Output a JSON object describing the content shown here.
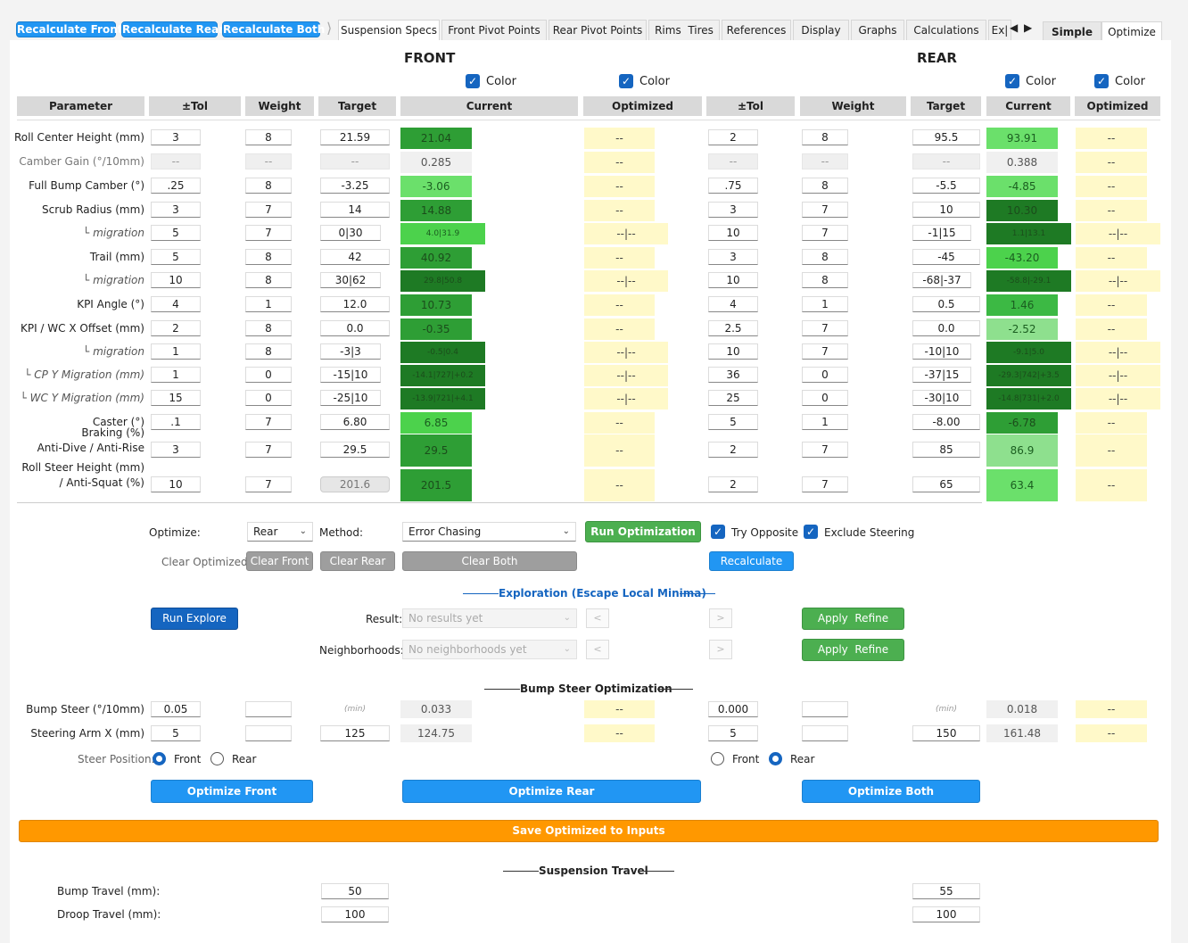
{
  "toolbar": {
    "recalc_front": "Recalculate Front",
    "recalc_rear": "Recalculate Rear",
    "recalc_both": "Recalculate Both"
  },
  "tabs": [
    "Suspension Specs",
    "Front Pivot Points",
    "Rear Pivot Points",
    "Rims  Tires",
    "References",
    "Display",
    "Graphs",
    "Calculations",
    "Ex|"
  ],
  "mode_tabs": [
    "Simple",
    "Optimize"
  ],
  "headers": {
    "front": "FRONT",
    "rear": "REAR",
    "color_label": "Color"
  },
  "columns": {
    "parameter": "Parameter",
    "tol": "±Tol",
    "weight": "Weight",
    "target": "Target",
    "current": "Current",
    "optimized": "Optimized"
  },
  "rows": [
    {
      "label": "Roll Center Height (mm)",
      "style": "",
      "f_tol": "3",
      "f_w": "8",
      "f_t": "21.59",
      "f_c": "21.04",
      "f_cc": "#2e9e35",
      "f_o": "--",
      "r_tol": "2",
      "r_w": "8",
      "r_t": "95.5",
      "r_c": "93.91",
      "r_cc": "#6be06b",
      "r_o": "--"
    },
    {
      "label": "Camber Gain (°/10mm)",
      "style": "gray",
      "dis": true,
      "f_tol": "--",
      "f_w": "--",
      "f_t": "--",
      "f_c": "0.285",
      "f_cc": "gray",
      "f_o": "--",
      "r_tol": "--",
      "r_w": "--",
      "r_t": "--",
      "r_c": "0.388",
      "r_cc": "gray",
      "r_o": "--"
    },
    {
      "label": "Full Bump Camber (°)",
      "style": "",
      "f_tol": ".25",
      "f_w": "8",
      "f_t": "-3.25",
      "f_c": "-3.06",
      "f_cc": "#6be06b",
      "f_o": "--",
      "r_tol": ".75",
      "r_w": "8",
      "r_t": "-5.5",
      "r_c": "-4.85",
      "r_cc": "#6be06b",
      "r_o": "--"
    },
    {
      "label": "Scrub Radius (mm)",
      "style": "",
      "f_tol": "3",
      "f_w": "7",
      "f_t": "14",
      "f_c": "14.88",
      "f_cc": "#2e9e35",
      "f_o": "--",
      "r_tol": "3",
      "r_w": "7",
      "r_t": "10",
      "r_c": "10.30",
      "r_cc": "#1e7a24",
      "r_o": "--"
    },
    {
      "label": "└ migration",
      "style": "italic",
      "wide": true,
      "f_tol": "5",
      "f_w": "7",
      "f_t": "0|30",
      "f_c": "4.0|31.9",
      "f_cc": "#4cd24c",
      "f_o": "--|--",
      "r_tol": "10",
      "r_w": "7",
      "r_t": "-1|15",
      "r_c": "1.1|13.1",
      "r_cc": "#1e7a24",
      "r_o": "--|--"
    },
    {
      "label": "Trail (mm)",
      "style": "",
      "f_tol": "5",
      "f_w": "8",
      "f_t": "42",
      "f_c": "40.92",
      "f_cc": "#2e9e35",
      "f_o": "--",
      "r_tol": "3",
      "r_w": "8",
      "r_t": "-45",
      "r_c": "-43.20",
      "r_cc": "#4cd24c",
      "r_o": "--"
    },
    {
      "label": "└ migration",
      "style": "italic",
      "wide": true,
      "f_tol": "10",
      "f_w": "8",
      "f_t": "30|62",
      "f_c": "29.8|50.8",
      "f_cc": "#1e7a24",
      "f_o": "--|--",
      "r_tol": "10",
      "r_w": "8",
      "r_t": "-68|-37",
      "r_c": "-58.8|-29.1",
      "r_cc": "#1e7a24",
      "r_o": "--|--"
    },
    {
      "label": "KPI Angle (°)",
      "style": "",
      "f_tol": "4",
      "f_w": "1",
      "f_t": "12.0",
      "f_c": "10.73",
      "f_cc": "#2e9e35",
      "f_o": "--",
      "r_tol": "4",
      "r_w": "1",
      "r_t": "0.5",
      "r_c": "1.46",
      "r_cc": "#3cb944",
      "r_o": "--"
    },
    {
      "label": "KPI / WC X Offset (mm)",
      "style": "",
      "f_tol": "2",
      "f_w": "8",
      "f_t": "0.0",
      "f_c": "-0.35",
      "f_cc": "#2e9e35",
      "f_o": "--",
      "r_tol": "2.5",
      "r_w": "7",
      "r_t": "0.0",
      "r_c": "-2.52",
      "r_cc": "#8ee08e",
      "r_o": "--"
    },
    {
      "label": "└ migration",
      "style": "italic",
      "wide": true,
      "f_tol": "1",
      "f_w": "8",
      "f_t": "-3|3",
      "f_c": "-0.5|0.4",
      "f_cc": "#1e7a24",
      "f_o": "--|--",
      "r_tol": "10",
      "r_w": "7",
      "r_t": "-10|10",
      "r_c": "-9.1|5.0",
      "r_cc": "#1e7a24",
      "r_o": "--|--"
    },
    {
      "label": "└ CP Y Migration (mm)",
      "style": "italic",
      "wide": true,
      "f_tol": "1",
      "f_w": "0",
      "f_t": "-15|10",
      "f_c": "-14.1|727|+0.2",
      "f_cc": "#1e7a24",
      "f_o": "--|--",
      "r_tol": "36",
      "r_w": "0",
      "r_t": "-37|15",
      "r_c": "-29.3|742|+3.5",
      "r_cc": "#1e7a24",
      "r_o": "--|--"
    },
    {
      "label": "└ WC Y Migration (mm)",
      "style": "italic",
      "wide": true,
      "f_tol": "15",
      "f_w": "0",
      "f_t": "-25|10",
      "f_c": "-13.9|721|+4.1",
      "f_cc": "#1e7a24",
      "f_o": "--|--",
      "r_tol": "25",
      "r_w": "0",
      "r_t": "-30|10",
      "r_c": "-14.8|731|+2.0",
      "r_cc": "#1e7a24",
      "r_o": "--|--"
    },
    {
      "label": "Caster (°)",
      "style": "",
      "f_tol": ".1",
      "f_w": "7",
      "f_t": "6.80",
      "f_c": "6.85",
      "f_cc": "#4cd24c",
      "f_o": "--",
      "r_tol": "5",
      "r_w": "1",
      "r_t": "-8.00",
      "r_c": "-6.78",
      "r_cc": "#2e9e35",
      "r_o": "--"
    },
    {
      "label": "Braking (%)",
      "label2": "Anti-Dive / Anti-Rise",
      "style": "",
      "tall": true,
      "f_tol": "3",
      "f_w": "7",
      "f_t": "29.5",
      "f_c": "29.5",
      "f_cc": "#2e9e35",
      "f_o": "--",
      "r_tol": "2",
      "r_w": "7",
      "r_t": "85",
      "r_c": "86.9",
      "r_cc": "#8ee08e",
      "r_o": "--"
    },
    {
      "label": "Roll Steer Height (mm)",
      "label2": "/ Anti-Squat (%)",
      "style": "",
      "tall": true,
      "roTarget": true,
      "f_tol": "10",
      "f_w": "7",
      "f_t": "201.6",
      "f_c": "201.5",
      "f_cc": "#2e9e35",
      "f_o": "--",
      "r_tol": "2",
      "r_w": "7",
      "r_t": "65",
      "r_c": "63.4",
      "r_cc": "#6be06b",
      "r_o": "--"
    }
  ],
  "optimize": {
    "optimize_label": "Optimize:",
    "optimize_value": "Rear",
    "method_label": "Method:",
    "method_value": "Error Chasing",
    "run_label": "Run Optimization",
    "try_opposite": "Try Opposite",
    "exclude_steering": "Exclude Steering",
    "clear_label": "Clear Optimized:",
    "clear_front": "Clear Front",
    "clear_rear": "Clear Rear",
    "clear_both": "Clear Both",
    "recalculate": "Recalculate"
  },
  "exploration": {
    "title": "Exploration (Escape Local Minima)",
    "run_explore": "Run Explore",
    "result_label": "Result:",
    "result_placeholder": "No results yet",
    "neighborhoods_label": "Neighborhoods:",
    "neighborhoods_placeholder": "No neighborhoods yet",
    "prev": "<",
    "next": ">",
    "apply_refine": "Apply  Refine"
  },
  "bump_steer": {
    "title": "Bump Steer Optimization",
    "rows": [
      {
        "label": "Bump Steer (°/10mm)",
        "f_tol": "0.05",
        "f_w": "",
        "f_t": "(min)",
        "f_c": "0.033",
        "f_o": "--",
        "r_tol": "0.000",
        "r_w": "",
        "r_t": "(min)",
        "r_c": "0.018",
        "r_o": "--"
      },
      {
        "label": "Steering Arm X (mm)",
        "f_tol": "5",
        "f_w": "",
        "f_t": "125",
        "f_c": "124.75",
        "f_o": "--",
        "r_tol": "5",
        "r_w": "",
        "r_t": "150",
        "r_c": "161.48",
        "r_o": "--"
      }
    ],
    "steer_position_label": "Steer Position:",
    "front": "Front",
    "rear": "Rear",
    "optimize_front": "Optimize Front",
    "optimize_rear": "Optimize Rear",
    "optimize_both": "Optimize Both"
  },
  "save_label": "Save Optimized to Inputs",
  "travel": {
    "title": "Suspension Travel",
    "bump_label": "Bump Travel (mm):",
    "droop_label": "Droop Travel (mm):",
    "f_bump": "50",
    "f_droop": "100",
    "r_bump": "55",
    "r_droop": "100"
  },
  "colors": {
    "accent_blue": "#2196f3",
    "dark_blue": "#1565c0",
    "green_button": "#4caf50",
    "orange_save": "#ff9800",
    "optimized_cell": "#fff9c9"
  }
}
